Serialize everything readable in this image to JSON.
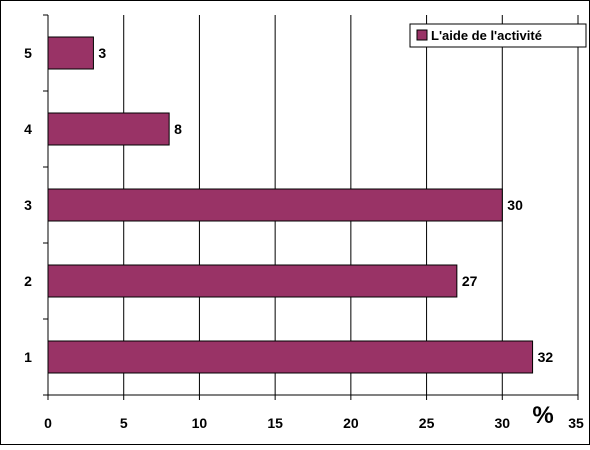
{
  "chart_data": {
    "type": "bar",
    "orientation": "horizontal",
    "categories": [
      "1",
      "2",
      "3",
      "4",
      "5"
    ],
    "series": [
      {
        "name": "L'aide de l'activité",
        "values": [
          32,
          27,
          30,
          8,
          3
        ],
        "data_labels": [
          "32",
          "27",
          "30",
          "8",
          "3"
        ],
        "color": "#993366"
      }
    ],
    "x_ticks": [
      "0",
      "5",
      "10",
      "15",
      "20",
      "25",
      "30",
      "35"
    ],
    "xlim": [
      0,
      35
    ],
    "xlabel": "%",
    "ylabel": "",
    "grid": "vertical",
    "legend_position": "top-right",
    "colors": {
      "bar": "#993366",
      "gridline": "#000000",
      "background": "#ffffff"
    }
  }
}
